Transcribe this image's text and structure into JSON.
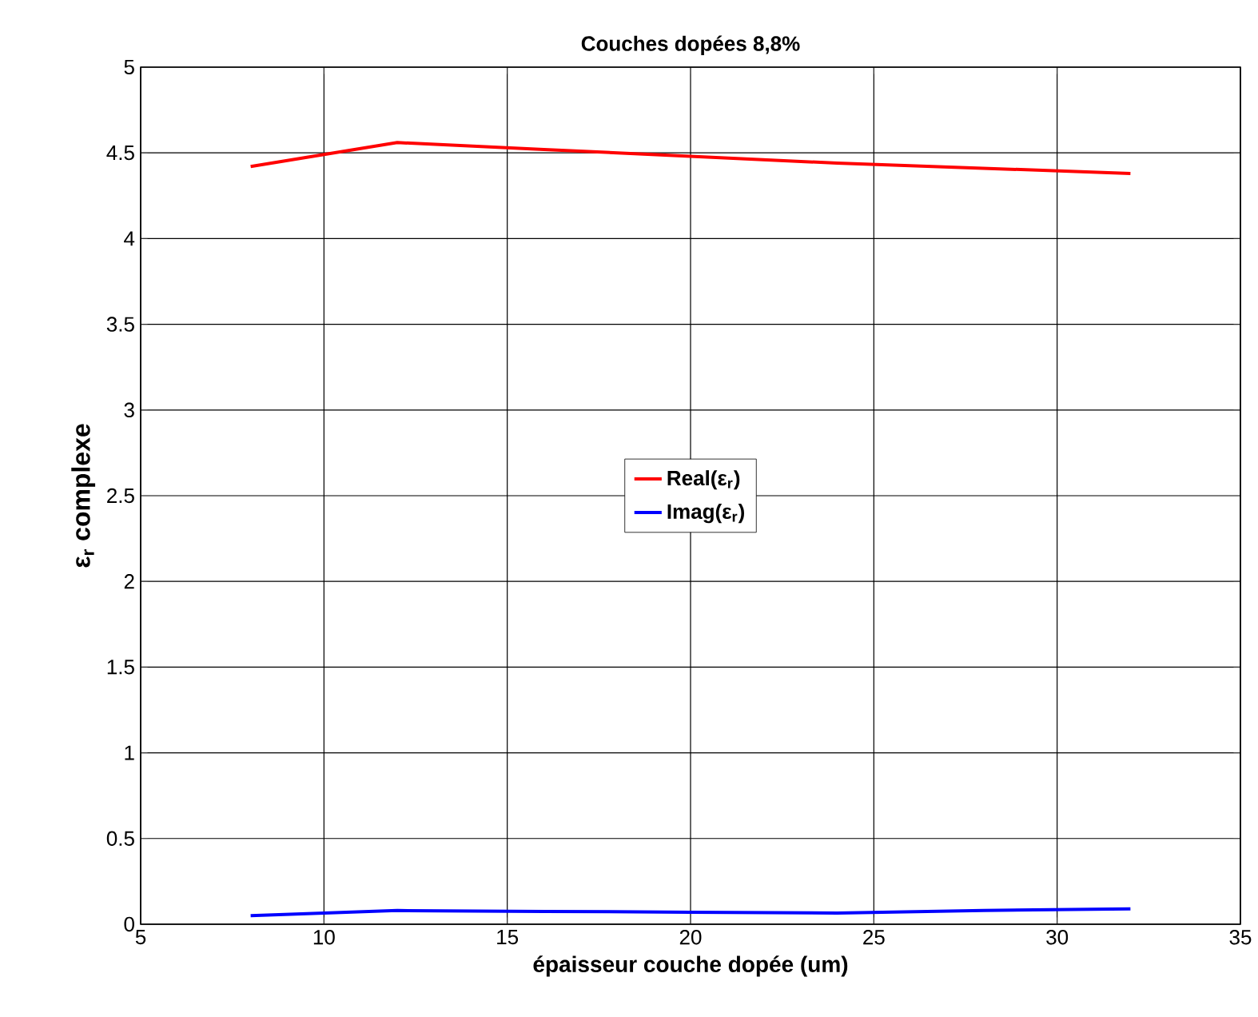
{
  "chart_data": {
    "type": "line",
    "title": "Couches dopées 8,8%",
    "xlabel": "épaisseur couche dopée (um)",
    "ylabel": "ε$_{r}$ complexe",
    "x": [
      8,
      12,
      16,
      20,
      24,
      28,
      32
    ],
    "series": [
      {
        "name": "Real(ε$_{r}$)",
        "color": "#ff0000",
        "values": [
          4.42,
          4.56,
          4.52,
          4.48,
          4.44,
          4.41,
          4.38
        ]
      },
      {
        "name": "Imag(ε$_{r}$)",
        "color": "#0000ff",
        "values": [
          0.05,
          0.08,
          0.075,
          0.07,
          0.065,
          0.08,
          0.09
        ]
      }
    ],
    "xlim": [
      5,
      35
    ],
    "ylim": [
      0,
      5
    ],
    "xticks": [
      5,
      10,
      15,
      20,
      25,
      30,
      35
    ],
    "yticks": [
      0,
      0.5,
      1,
      1.5,
      2,
      2.5,
      3,
      3.5,
      4,
      4.5,
      5
    ],
    "grid": true,
    "legend": "center",
    "marker": "none",
    "line_style": "solid"
  }
}
